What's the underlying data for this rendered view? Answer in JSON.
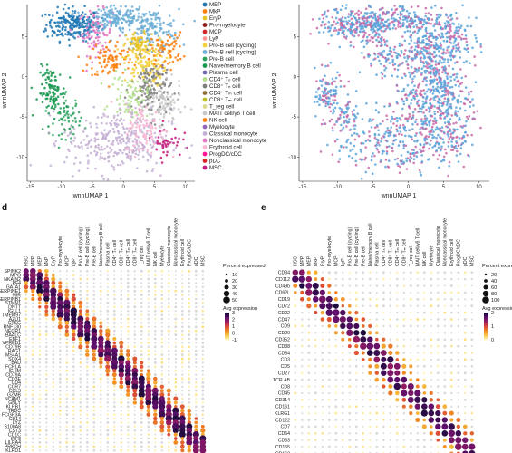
{
  "chart_data": [
    {
      "type": "scatter",
      "panel": "umap-celltype",
      "xlabel": "wnnUMAP 1",
      "ylabel": "wnnUMAP 2",
      "xticks": [
        -15,
        -10,
        -5,
        0,
        5,
        10
      ],
      "yticks": [
        -10,
        -5,
        0,
        5
      ],
      "xlim": [
        -15.5,
        11.5
      ],
      "ylim": [
        -13,
        9
      ],
      "legend": [
        {
          "label": "MEP",
          "color": "#1f77b4"
        },
        {
          "label": "MkP",
          "color": "#ff7f0e"
        },
        {
          "label": "EryP",
          "color": "#e6c229"
        },
        {
          "label": "Pro-myelocyte",
          "color": "#8b1a1a"
        },
        {
          "label": "MCP",
          "color": "#d62728"
        },
        {
          "label": "LyP",
          "color": "#ff9896"
        },
        {
          "label": "Pro-B cell (cycling)",
          "color": "#f4d03f"
        },
        {
          "label": "Pre-B cell (cycling)",
          "color": "#6baed6"
        },
        {
          "label": "Pre-B cell",
          "color": "#2ca25f"
        },
        {
          "label": "Naive/memory B cell",
          "color": "#1a9850"
        },
        {
          "label": "Plasma cell",
          "color": "#756bb1"
        },
        {
          "label": "CD4⁺ Tₙ cell",
          "color": "#b2df8a"
        },
        {
          "label": "CD8⁺ Tₙ cell",
          "color": "#7f7f7f"
        },
        {
          "label": "CD4⁺ Tₘ cell",
          "color": "#8c6d31"
        },
        {
          "label": "CD8⁺ Tₘ cell",
          "color": "#bcbd22"
        },
        {
          "label": "T_reg cell",
          "color": "#dbdb8d"
        },
        {
          "label": "MAIT cell/γδ T cell",
          "color": "#c7c7c7"
        },
        {
          "label": "NK cell",
          "color": "#ff7f0e"
        },
        {
          "label": "Myelocyte",
          "color": "#9467bd"
        },
        {
          "label": "Classical monocyte",
          "color": "#c5b0d5"
        },
        {
          "label": "Nonclassical monocyte",
          "color": "#e377c2"
        },
        {
          "label": "Erythroid cell",
          "color": "#f7b6d2"
        },
        {
          "label": "ProgDC/cDC",
          "color": "#ff1493"
        },
        {
          "label": "pDC",
          "color": "#d62728"
        },
        {
          "label": "MSC",
          "color": "#c51b7d"
        }
      ]
    },
    {
      "type": "scatter",
      "panel": "umap-batch",
      "xlabel": "wnnUMAP 1",
      "ylabel": "wnnUMAP 2",
      "xticks": [
        -15,
        -10,
        -5,
        0,
        5,
        10
      ],
      "yticks": [
        -10,
        -5,
        0,
        5
      ],
      "colors": [
        "#5aa3db",
        "#c96aa8"
      ]
    },
    {
      "type": "heatmap",
      "panel": "d",
      "panel_label": "d",
      "columns": [
        "HSC",
        "MPP",
        "MEP",
        "MkP",
        "EryP",
        "Pro-myelocyte",
        "MCP",
        "LyP",
        "Pro-B cell (cycling)",
        "Pre-B cell (cycling)",
        "Pre-B cell",
        "Naive/memory B cell",
        "Plasma cell",
        "CD4⁺ Tₙ cell",
        "CD8⁺ Tₙ cell",
        "CD4⁺ Tₘ cell",
        "CD8⁺ Tₘ cell",
        "T_reg cell",
        "MAIT cell/γδ T cell",
        "NK cell",
        "Myelocyte",
        "Classical monocyte",
        "Nonclassical monocyte",
        "Erythroid cell",
        "ProgDC/cDC",
        "pDC",
        "MSC"
      ],
      "rows": [
        "SPINK2",
        "MPO",
        "NKAIN2",
        "PF4",
        "GATA1",
        "SERPINE1",
        "MIR",
        "SERPINB1",
        "STMN1",
        "DNTT",
        "IGLL1",
        "TMEM97",
        "AZU1",
        "CTSG",
        "RNF130",
        "NEGR1",
        "BAALC",
        "EBF1",
        "VPREB1",
        "CD79B",
        "RAG1",
        "MS4A1",
        "SOX4",
        "BAD",
        "FCRLA",
        "IGHM",
        "CD79A",
        "CD3E",
        "CD4",
        "CCR7",
        "CCL5",
        "GZMB",
        "NCAM1",
        "GNLY",
        "KLRB1",
        "TRDC",
        "FCGR3A",
        "CD14",
        "LYZ",
        "S100A8",
        "CST3",
        "CD1C",
        "IRF8",
        "LILRA4",
        "PRKCH",
        "KLRD1"
      ],
      "size_legend_title": "Percent expressed",
      "size_legend": [
        10,
        20,
        30,
        40,
        50
      ],
      "color_legend_title": "Avg expression",
      "color_legend": [
        -1,
        0,
        1,
        2,
        3
      ],
      "colormap": [
        "#fff3b0",
        "#f8c240",
        "#f08a24",
        "#d9463a",
        "#a01f5d",
        "#5e0f6b",
        "#1b0b3a"
      ]
    },
    {
      "type": "heatmap",
      "panel": "e",
      "panel_label": "e",
      "columns": [
        "HSC",
        "MPP",
        "MEP",
        "MkP",
        "EryP",
        "Pro-myelocyte",
        "MCP",
        "LyP",
        "Pro-B cell (cycling)",
        "Pre-B cell (cycling)",
        "Pre-B cell",
        "Naive/memory B cell",
        "Plasma cell",
        "CD4⁺ Tₙ cell",
        "CD8⁺ Tₙ cell",
        "CD4⁺ Tₘ cell",
        "CD8⁺ Tₘ cell",
        "T_reg cell",
        "MAIT cell/γδ T cell",
        "NK cell",
        "Myelocyte",
        "Classical monocyte",
        "Nonclassical monocyte",
        "Erythroid cell",
        "ProgDC/cDC",
        "pDC",
        "MSC"
      ],
      "rows": [
        "CD34",
        "CD112",
        "CD49b",
        "CD62L",
        "CD19",
        "CD72",
        "CD22",
        "CD47",
        "CD9",
        "CD20",
        "CD352",
        "CD38",
        "CD54",
        "CD3",
        "CD5",
        "CD27",
        "TCR.AB",
        "CD8",
        "CD45",
        "CD314",
        "CD161",
        "KLRG1",
        "CD122",
        "CD7",
        "CD64",
        "CD33",
        "CD155",
        "CD162"
      ],
      "size_legend_title": "Percent expressed",
      "size_legend": [
        20,
        40,
        60,
        80,
        100
      ],
      "color_legend_title": "Avg expression",
      "color_legend": [
        0,
        1.0,
        2.0
      ],
      "colormap": [
        "#fff3b0",
        "#f8c240",
        "#f08a24",
        "#d9463a",
        "#a01f5d",
        "#5e0f6b",
        "#1b0b3a"
      ]
    }
  ]
}
